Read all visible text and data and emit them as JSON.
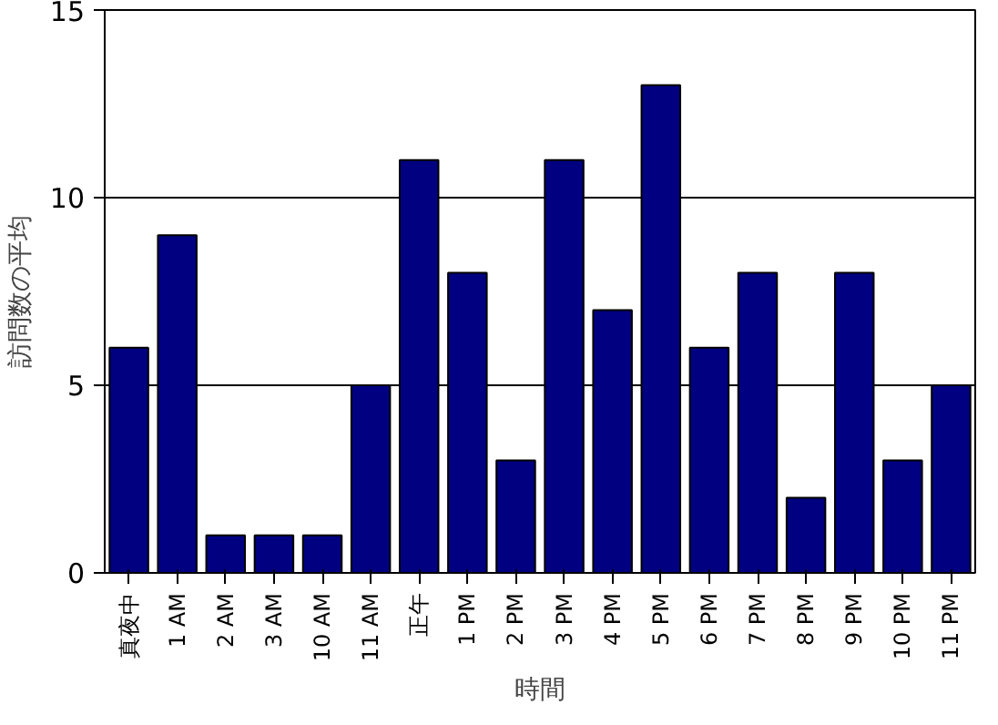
{
  "chart_data": {
    "type": "bar",
    "xlabel": "時間",
    "ylabel": "訪問数の平均",
    "categories": [
      "真夜中",
      "1 AM",
      "2 AM",
      "3 AM",
      "10 AM",
      "11 AM",
      "正午",
      "1 PM",
      "2 PM",
      "3 PM",
      "4 PM",
      "5 PM",
      "6 PM",
      "7 PM",
      "8 PM",
      "9 PM",
      "10 PM",
      "11 PM"
    ],
    "values": [
      6,
      9,
      1,
      1,
      1,
      5,
      11,
      8,
      3,
      11,
      7,
      13,
      6,
      8,
      2,
      8,
      3,
      5
    ],
    "color": "#000080",
    "ylim": [
      0,
      15
    ],
    "yticks": [
      0,
      5,
      10,
      15
    ],
    "grid": "y"
  }
}
